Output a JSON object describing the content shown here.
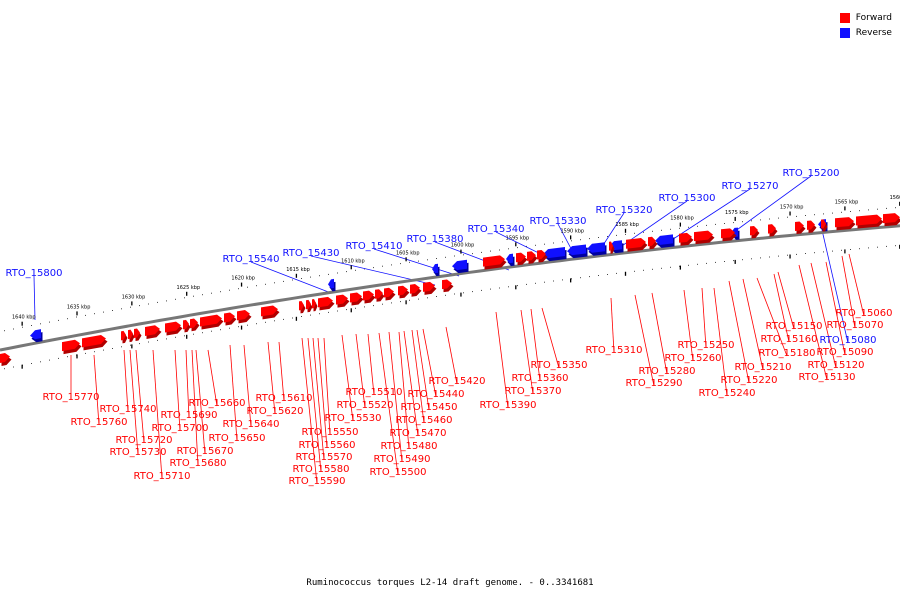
{
  "legend": {
    "forward_label": "Forward",
    "reverse_label": "Reverse",
    "forward_color": "#ff0000",
    "reverse_color": "#1010ff"
  },
  "caption": "Ruminococcus torques L2-14 draft genome. - 0..3341681",
  "axis": {
    "unit": "kbp",
    "ticks": [
      {
        "kbp": 1640,
        "label": "1640 kbp"
      },
      {
        "kbp": 1635,
        "label": "1635 kbp"
      },
      {
        "kbp": 1630,
        "label": "1630 kbp"
      },
      {
        "kbp": 1625,
        "label": "1625 kbp"
      },
      {
        "kbp": 1620,
        "label": "1620 kbp"
      },
      {
        "kbp": 1615,
        "label": "1615 kbp"
      },
      {
        "kbp": 1610,
        "label": "1610 kbp"
      },
      {
        "kbp": 1605,
        "label": "1605 kbp"
      },
      {
        "kbp": 1600,
        "label": "1600 kbp"
      },
      {
        "kbp": 1595,
        "label": "1595 kbp"
      },
      {
        "kbp": 1590,
        "label": "1590 kbp"
      },
      {
        "kbp": 1585,
        "label": "1585 kbp"
      },
      {
        "kbp": 1580,
        "label": "1580 kbp"
      },
      {
        "kbp": 1575,
        "label": "1575 kbp"
      },
      {
        "kbp": 1570,
        "label": "1570 kbp"
      },
      {
        "kbp": 1565,
        "label": "1565 kbp"
      },
      {
        "kbp": 1560,
        "label": "1560 kbp"
      }
    ]
  },
  "reverse_genes": [
    "RTO_15800",
    "RTO_15540",
    "RTO_15430",
    "RTO_15410",
    "RTO_15380",
    "RTO_15340",
    "RTO_15330",
    "RTO_15320",
    "RTO_15300",
    "RTO_15270",
    "RTO_15200",
    "RTO_15080"
  ],
  "forward_genes": [
    "RTO_15770",
    "RTO_15760",
    "RTO_15740",
    "RTO_15730",
    "RTO_15720",
    "RTO_15710",
    "RTO_15700",
    "RTO_15690",
    "RTO_15680",
    "RTO_15670",
    "RTO_15660",
    "RTO_15650",
    "RTO_15640",
    "RTO_15620",
    "RTO_15610",
    "RTO_15590",
    "RTO_15580",
    "RTO_15570",
    "RTO_15560",
    "RTO_15550",
    "RTO_15530",
    "RTO_15520",
    "RTO_15510",
    "RTO_15500",
    "RTO_15490",
    "RTO_15480",
    "RTO_15470",
    "RTO_15460",
    "RTO_15450",
    "RTO_15440",
    "RTO_15420",
    "RTO_15390",
    "RTO_15370",
    "RTO_15360",
    "RTO_15350",
    "RTO_15310",
    "RTO_15290",
    "RTO_15280",
    "RTO_15260",
    "RTO_15250",
    "RTO_15240",
    "RTO_15220",
    "RTO_15210",
    "RTO_15180",
    "RTO_15160",
    "RTO_15150",
    "RTO_15130",
    "RTO_15120",
    "RTO_15090",
    "RTO_15070",
    "RTO_15060"
  ]
}
